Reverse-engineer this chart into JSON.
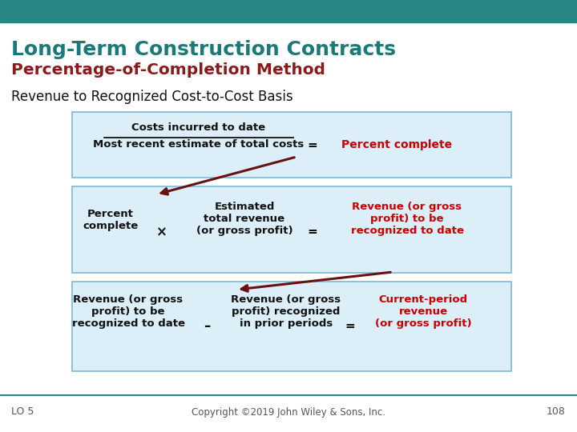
{
  "title_line1": "Long-Term Construction Contracts",
  "title_line2": "Percentage-of-Completion Method",
  "subtitle": "Revenue to Recognized Cost-to-Cost Basis",
  "title_color": "#1a7a7a",
  "title2_color": "#8b1a1a",
  "subtitle_color": "#111111",
  "header_bar_color": "#2a8585",
  "footer_line_color": "#2a8585",
  "box_bg_color": "#dceef8",
  "box_border_color": "#7ab8d8",
  "red_text_color": "#cc0000",
  "black_text_color": "#111111",
  "arrow_color": "#6b1010",
  "lo_text": "LO 5",
  "copyright_text": "Copyright ©2019 John Wiley & Sons, Inc.",
  "page_num": "108",
  "bg_color": "#ffffff"
}
